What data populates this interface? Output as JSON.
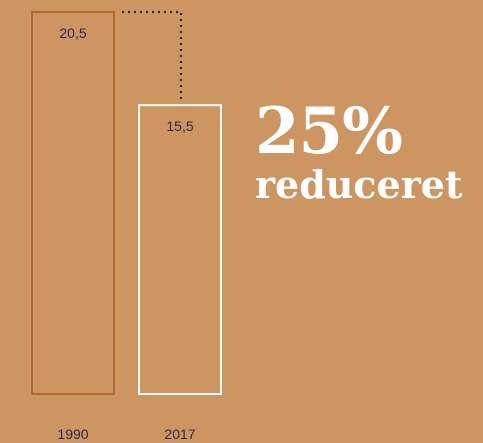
{
  "chart_data": {
    "type": "bar",
    "categories": [
      "1990",
      "2017"
    ],
    "values": [
      20.5,
      15.5
    ],
    "value_labels": [
      "20,5",
      "15,5"
    ],
    "ylim": [
      0,
      20.5
    ],
    "series_colors": [
      "#B5682E",
      "#FFFFFF"
    ],
    "connector": "dotted",
    "title": "",
    "xlabel": "",
    "ylabel": ""
  },
  "headline": {
    "percent": "25%",
    "text": "reduceret"
  },
  "colors": {
    "background": "#CC9562",
    "label_text": "#2B2A4C",
    "headline": "#FFFFFF"
  }
}
